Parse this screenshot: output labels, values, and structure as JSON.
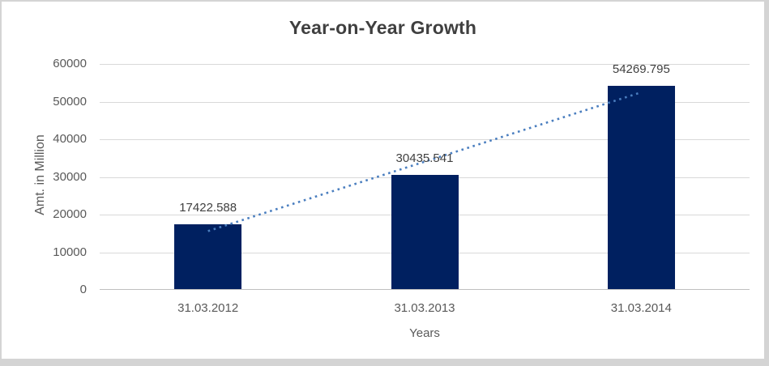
{
  "chart_data": {
    "type": "bar",
    "title": "Year-on-Year Growth",
    "xlabel": "Years",
    "ylabel": "Amt. in Million",
    "categories": [
      "31.03.2012",
      "31.03.2013",
      "31.03.2014"
    ],
    "values": [
      17422.588,
      30435.541,
      54269.795
    ],
    "value_labels": [
      "17422.588",
      "30435.541",
      "54269.795"
    ],
    "ylim": [
      0,
      60000
    ],
    "ytick_step": 10000,
    "ytick_labels": [
      "0",
      "10000",
      "20000",
      "30000",
      "40000",
      "50000",
      "60000"
    ],
    "grid": true,
    "legend_position": "none",
    "trendline": {
      "fit": "linear",
      "style": "dotted"
    },
    "colors": {
      "bar": "#002060",
      "trendline": "#4a7ebf",
      "gridline": "#d9d9d9",
      "axis_line": "#bfbfbf",
      "title_text": "#3f3f3f",
      "data_label_text": "#404040",
      "tick_text": "#595959",
      "frame_border": "#d4d4d4"
    }
  }
}
